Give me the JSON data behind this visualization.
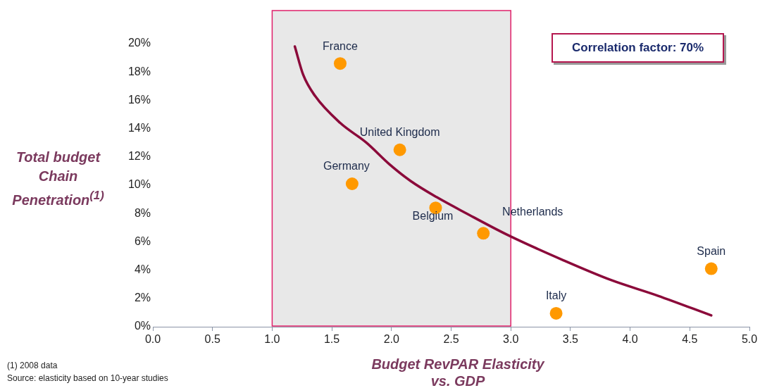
{
  "chart_data": {
    "type": "scatter",
    "xlabel": "Budget RevPAR Elasticity\nvs. GDP",
    "ylabel": "Total budget\nChain\nPenetration$^{(1)}$",
    "xlim": [
      0,
      5
    ],
    "ylim": [
      0,
      20
    ],
    "xticks": [
      {
        "value": 0,
        "label": "0.0"
      },
      {
        "value": 0.5,
        "label": "0.5"
      },
      {
        "value": 1,
        "label": "1.0"
      },
      {
        "value": 1.5,
        "label": "1.5"
      },
      {
        "value": 2,
        "label": "2.0"
      },
      {
        "value": 2.5,
        "label": "2.5"
      },
      {
        "value": 3,
        "label": "3.0"
      },
      {
        "value": 3.5,
        "label": "3.5"
      },
      {
        "value": 4,
        "label": "4.0"
      },
      {
        "value": 4.5,
        "label": "4.5"
      },
      {
        "value": 5,
        "label": "5.0"
      }
    ],
    "yticks": [
      {
        "value": 0,
        "label": "0%"
      },
      {
        "value": 2,
        "label": "2%"
      },
      {
        "value": 4,
        "label": "4%"
      },
      {
        "value": 6,
        "label": "6%"
      },
      {
        "value": 8,
        "label": "8%"
      },
      {
        "value": 10,
        "label": "10%"
      },
      {
        "value": 12,
        "label": "12%"
      },
      {
        "value": 14,
        "label": "14%"
      },
      {
        "value": 16,
        "label": "16%"
      },
      {
        "value": 18,
        "label": "18%"
      },
      {
        "value": 20,
        "label": "20%"
      }
    ],
    "grid": false,
    "legend": false,
    "bands": [
      {
        "axis": "x",
        "from": 1,
        "to": 3,
        "color": "#e8e8e8"
      }
    ],
    "series": [
      {
        "type": "line",
        "color": "#8b0a3a",
        "marker": "none",
        "line_style": "solid",
        "x": [
          1.19,
          1.26,
          1.36,
          1.57,
          1.79,
          1.98,
          2.16,
          2.38,
          2.63,
          2.97,
          3.44,
          3.84,
          4.23,
          4.68
        ],
        "values": [
          19.8,
          17.8,
          16.3,
          14.4,
          13.0,
          11.5,
          10.3,
          9.15,
          8.0,
          6.5,
          4.7,
          3.3,
          2.2,
          0.8
        ]
      },
      {
        "type": "scatter",
        "color": "#ff9900",
        "marker": "circle",
        "x": [
          1.57,
          2.07,
          1.67,
          2.37,
          2.77,
          3.38,
          4.68
        ],
        "values": [
          18.6,
          12.5,
          10.1,
          8.4,
          6.6,
          0.95,
          4.1
        ]
      }
    ],
    "annotations": [
      {
        "text": "France",
        "x": 1.57,
        "y": 18.6
      },
      {
        "text": "United Kingdom",
        "x": 2.07,
        "y": 12.5
      },
      {
        "text": "Germany",
        "x": 1.67,
        "y": 10.1
      },
      {
        "text": "Belgium",
        "x": 2.37,
        "y": 8.4
      },
      {
        "text": "Netherlands",
        "x": 2.77,
        "y": 6.6
      },
      {
        "text": "Italy",
        "x": 3.38,
        "y": 0.95
      },
      {
        "text": "Spain",
        "x": 4.68,
        "y": 4.1
      },
      "Correlation factor: 70%",
      "(1) 2008 data",
      "Source: elasticity based on 10-year studies"
    ]
  }
}
